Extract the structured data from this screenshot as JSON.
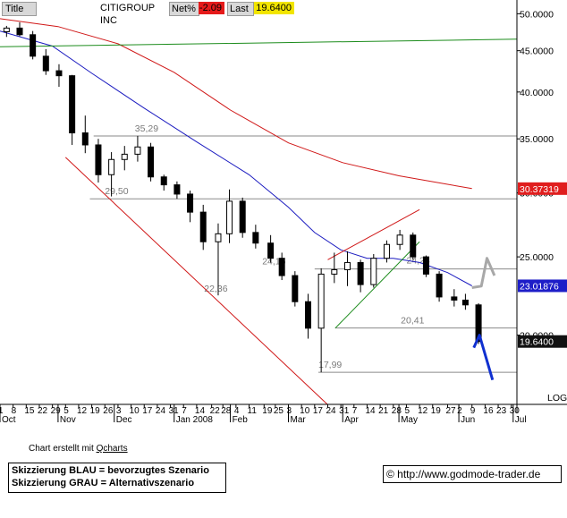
{
  "header": {
    "title_tab": "Title",
    "instrument": "CITIGROUP INC",
    "netpct_label": "Net%",
    "netpct_value": "-2.09",
    "last_label": "Last",
    "last_value": "19.6400"
  },
  "chart_data": {
    "type": "candlestick",
    "title": "CITIGROUP INC",
    "y_scale": "log",
    "ylim": [
      16.5,
      52
    ],
    "y_ticks": [
      "50.0000",
      "45.0000",
      "40.0000",
      "35.0000",
      "30.0000",
      "25.0000",
      "20.0000"
    ],
    "y_tick_values": [
      50,
      45,
      40,
      35,
      30,
      25,
      20
    ],
    "y_axis_mode_label": "LOG",
    "x_tick_labels": [
      "1",
      "8",
      "15",
      "22",
      "29",
      "5",
      "12",
      "19",
      "26",
      "3",
      "10",
      "17",
      "24",
      "31",
      "7",
      "14",
      "22",
      "28",
      "4",
      "11",
      "19",
      "25",
      "3",
      "10",
      "17",
      "24",
      "31",
      "7",
      "14",
      "21",
      "28",
      "5",
      "12",
      "19",
      "27",
      "2",
      "9",
      "16",
      "23",
      "30"
    ],
    "x_tick_dates": [
      "2007-10-01",
      "2007-10-08",
      "2007-10-15",
      "2007-10-22",
      "2007-10-29",
      "2007-11-05",
      "2007-11-12",
      "2007-11-19",
      "2007-11-26",
      "2007-12-03",
      "2007-12-10",
      "2007-12-17",
      "2007-12-24",
      "2007-12-31",
      "2008-01-07",
      "2008-01-14",
      "2008-01-22",
      "2008-01-28",
      "2008-02-04",
      "2008-02-11",
      "2008-02-19",
      "2008-02-25",
      "2008-03-03",
      "2008-03-10",
      "2008-03-17",
      "2008-03-24",
      "2008-03-31",
      "2008-04-07",
      "2008-04-14",
      "2008-04-21",
      "2008-04-28",
      "2008-05-05",
      "2008-05-12",
      "2008-05-19",
      "2008-05-27",
      "2008-06-02",
      "2008-06-09",
      "2008-06-16",
      "2008-06-23",
      "2008-06-30"
    ],
    "month_labels": [
      {
        "label": "Oct",
        "date": "2007-10-01"
      },
      {
        "label": "Nov",
        "date": "2007-11-01"
      },
      {
        "label": "Dec",
        "date": "2007-12-01"
      },
      {
        "label": "Jan 2008",
        "date": "2008-01-02"
      },
      {
        "label": "Feb",
        "date": "2008-02-01"
      },
      {
        "label": "Mar",
        "date": "2008-03-03"
      },
      {
        "label": "Apr",
        "date": "2008-04-01"
      },
      {
        "label": "May",
        "date": "2008-05-01"
      },
      {
        "label": "Jun",
        "date": "2008-06-02"
      },
      {
        "label": "Jul",
        "date": "2008-07-01"
      }
    ],
    "x_range": [
      "2007-10-01",
      "2008-07-03"
    ],
    "ohlc_weekly": [
      {
        "date": "2007-10-01",
        "o": 47.5,
        "h": 48.3,
        "l": 46.8,
        "c": 48.0
      },
      {
        "date": "2007-10-08",
        "o": 48.0,
        "h": 48.8,
        "l": 46.9,
        "c": 47.1
      },
      {
        "date": "2007-10-15",
        "o": 47.1,
        "h": 47.6,
        "l": 43.9,
        "c": 44.3
      },
      {
        "date": "2007-10-22",
        "o": 44.3,
        "h": 45.2,
        "l": 42.0,
        "c": 42.5
      },
      {
        "date": "2007-10-29",
        "o": 42.5,
        "h": 43.3,
        "l": 40.6,
        "c": 41.9
      },
      {
        "date": "2007-11-05",
        "o": 41.9,
        "h": 42.0,
        "l": 34.4,
        "c": 35.6
      },
      {
        "date": "2007-11-12",
        "o": 35.6,
        "h": 37.4,
        "l": 33.6,
        "c": 34.4
      },
      {
        "date": "2007-11-19",
        "o": 34.4,
        "h": 35.0,
        "l": 30.9,
        "c": 31.6
      },
      {
        "date": "2007-11-26",
        "o": 31.6,
        "h": 33.7,
        "l": 29.7,
        "c": 33.0
      },
      {
        "date": "2007-12-03",
        "o": 33.0,
        "h": 34.3,
        "l": 32.0,
        "c": 33.5
      },
      {
        "date": "2007-12-10",
        "o": 33.5,
        "h": 35.3,
        "l": 32.8,
        "c": 34.2
      },
      {
        "date": "2007-12-17",
        "o": 34.2,
        "h": 34.6,
        "l": 31.0,
        "c": 31.4
      },
      {
        "date": "2007-12-24",
        "o": 31.4,
        "h": 31.6,
        "l": 30.2,
        "c": 30.7
      },
      {
        "date": "2007-12-31",
        "o": 30.7,
        "h": 31.0,
        "l": 29.5,
        "c": 29.9
      },
      {
        "date": "2008-01-07",
        "o": 29.9,
        "h": 30.2,
        "l": 27.6,
        "c": 28.4
      },
      {
        "date": "2008-01-14",
        "o": 28.4,
        "h": 29.0,
        "l": 25.5,
        "c": 26.1
      },
      {
        "date": "2008-01-22",
        "o": 26.1,
        "h": 27.5,
        "l": 22.4,
        "c": 26.7
      },
      {
        "date": "2008-01-28",
        "o": 26.7,
        "h": 30.3,
        "l": 26.0,
        "c": 29.3
      },
      {
        "date": "2008-02-04",
        "o": 29.3,
        "h": 29.6,
        "l": 26.4,
        "c": 26.8
      },
      {
        "date": "2008-02-11",
        "o": 26.8,
        "h": 27.4,
        "l": 25.6,
        "c": 26.0
      },
      {
        "date": "2008-02-19",
        "o": 26.0,
        "h": 26.6,
        "l": 24.6,
        "c": 24.9
      },
      {
        "date": "2008-02-25",
        "o": 24.9,
        "h": 25.3,
        "l": 23.4,
        "c": 23.7
      },
      {
        "date": "2008-03-03",
        "o": 23.7,
        "h": 24.0,
        "l": 21.7,
        "c": 22.0
      },
      {
        "date": "2008-03-10",
        "o": 22.0,
        "h": 22.5,
        "l": 19.8,
        "c": 20.4
      },
      {
        "date": "2008-03-17",
        "o": 20.4,
        "h": 24.2,
        "l": 17.99,
        "c": 23.8
      },
      {
        "date": "2008-03-24",
        "o": 23.8,
        "h": 25.3,
        "l": 23.2,
        "c": 24.1
      },
      {
        "date": "2008-03-31",
        "o": 24.1,
        "h": 25.4,
        "l": 23.0,
        "c": 24.6
      },
      {
        "date": "2008-04-07",
        "o": 24.6,
        "h": 24.8,
        "l": 22.6,
        "c": 23.1
      },
      {
        "date": "2008-04-14",
        "o": 23.1,
        "h": 25.2,
        "l": 22.9,
        "c": 24.9
      },
      {
        "date": "2008-04-21",
        "o": 24.9,
        "h": 26.2,
        "l": 24.6,
        "c": 25.9
      },
      {
        "date": "2008-04-28",
        "o": 25.9,
        "h": 27.0,
        "l": 25.5,
        "c": 26.6
      },
      {
        "date": "2008-05-05",
        "o": 26.6,
        "h": 26.8,
        "l": 24.8,
        "c": 25.0
      },
      {
        "date": "2008-05-12",
        "o": 25.0,
        "h": 25.1,
        "l": 23.6,
        "c": 23.8
      },
      {
        "date": "2008-05-19",
        "o": 23.8,
        "h": 24.0,
        "l": 22.0,
        "c": 22.3
      },
      {
        "date": "2008-05-27",
        "o": 22.3,
        "h": 22.8,
        "l": 21.7,
        "c": 22.1
      },
      {
        "date": "2008-06-02",
        "o": 22.1,
        "h": 22.5,
        "l": 21.5,
        "c": 21.8
      },
      {
        "date": "2008-06-09",
        "o": 21.8,
        "h": 21.9,
        "l": 19.5,
        "c": 19.64
      }
    ],
    "moving_averages": [
      {
        "color": "#1c1cc0",
        "points": [
          [
            "2007-10-01",
            47.6
          ],
          [
            "2007-10-29",
            45.6
          ],
          [
            "2007-11-19",
            42.2
          ],
          [
            "2007-12-17",
            38.2
          ],
          [
            "2008-01-14",
            34.7
          ],
          [
            "2008-02-11",
            31.6
          ],
          [
            "2008-03-03",
            28.8
          ],
          [
            "2008-03-17",
            26.8
          ],
          [
            "2008-03-31",
            25.5
          ],
          [
            "2008-04-14",
            24.9
          ],
          [
            "2008-04-28",
            24.9
          ],
          [
            "2008-05-12",
            24.6
          ],
          [
            "2008-05-27",
            23.9
          ],
          [
            "2008-06-09",
            23.02
          ]
        ]
      },
      {
        "color": "#d01818",
        "points": [
          [
            "2007-10-01",
            49.3
          ],
          [
            "2007-11-01",
            48.2
          ],
          [
            "2007-12-03",
            45.9
          ],
          [
            "2008-01-02",
            42.3
          ],
          [
            "2008-02-01",
            38.0
          ],
          [
            "2008-03-03",
            34.6
          ],
          [
            "2008-04-01",
            32.7
          ],
          [
            "2008-05-01",
            31.5
          ],
          [
            "2008-06-09",
            30.37
          ]
        ]
      },
      {
        "color": "#1c8c1c",
        "points": [
          [
            "2007-10-01",
            45.5
          ],
          [
            "2008-07-03",
            46.5
          ]
        ]
      }
    ],
    "horizontal_levels": [
      {
        "value": 35.29,
        "label": "35,29",
        "label_date": "2007-12-12",
        "from": "2007-11-20",
        "to": "2008-07-03"
      },
      {
        "value": 29.5,
        "label": "29,50",
        "label_date": "2007-11-26",
        "from": "2007-11-18",
        "to": "2008-07-03"
      },
      {
        "value": 24.15,
        "label": "24,15",
        "label_date": "2008-02-18",
        "from": "2008-03-17",
        "to": "2008-07-03"
      },
      {
        "value": 22.36,
        "label": "22,36",
        "label_date": "2008-01-18",
        "from": null,
        "to": null
      },
      {
        "value": 24.23,
        "label": "24,23",
        "label_date": "2008-05-05",
        "from": null,
        "to": null
      },
      {
        "value": 20.41,
        "label": "20,41",
        "label_date": "2008-05-02",
        "from": "2008-03-28",
        "to": "2008-07-03"
      },
      {
        "value": 17.99,
        "label": "17,99",
        "label_date": "2008-03-19",
        "from": "2008-03-19",
        "to": "2008-07-03"
      }
    ],
    "trendlines": [
      {
        "color": "#d01818",
        "from": [
          "2007-11-05",
          33.2
        ],
        "to": [
          "2008-03-24",
          16.4
        ]
      },
      {
        "color": "#d01818",
        "from": [
          "2008-03-24",
          24.8
        ],
        "to": [
          "2008-05-12",
          28.6
        ]
      },
      {
        "color": "#1c8c1c",
        "from": [
          "2008-03-28",
          20.4
        ],
        "to": [
          "2008-05-12",
          26.1
        ]
      }
    ],
    "price_markers": [
      {
        "label": "30.37319",
        "value": 30.37,
        "color": "#e01e1e"
      },
      {
        "label": "23.01876",
        "value": 23.02,
        "color": "#1e1ec8"
      },
      {
        "label": "19.6400",
        "value": 19.64,
        "color": "#111111"
      }
    ],
    "scenarios": [
      {
        "name": "Skizzierung BLAU",
        "color": "#1030d0",
        "points": [
          [
            "2008-06-10",
            19.3
          ],
          [
            "2008-06-13",
            20.0
          ],
          [
            "2008-06-20",
            17.6
          ]
        ]
      },
      {
        "name": "Skizzierung GRAU",
        "color": "#a8a8a8",
        "points": [
          [
            "2008-06-09",
            22.9
          ],
          [
            "2008-06-14",
            23.0
          ],
          [
            "2008-06-17",
            24.9
          ],
          [
            "2008-06-21",
            23.7
          ]
        ]
      }
    ]
  },
  "footer": {
    "credit_prefix": "Chart erstellt mit ",
    "credit_link": "Qcharts",
    "legend_line1": "Skizzierung BLAU = bevorzugtes Szenario",
    "legend_line2": "Skizzierung GRAU = Alternativszenario",
    "copyright": "© http://www.godmode-trader.de"
  }
}
